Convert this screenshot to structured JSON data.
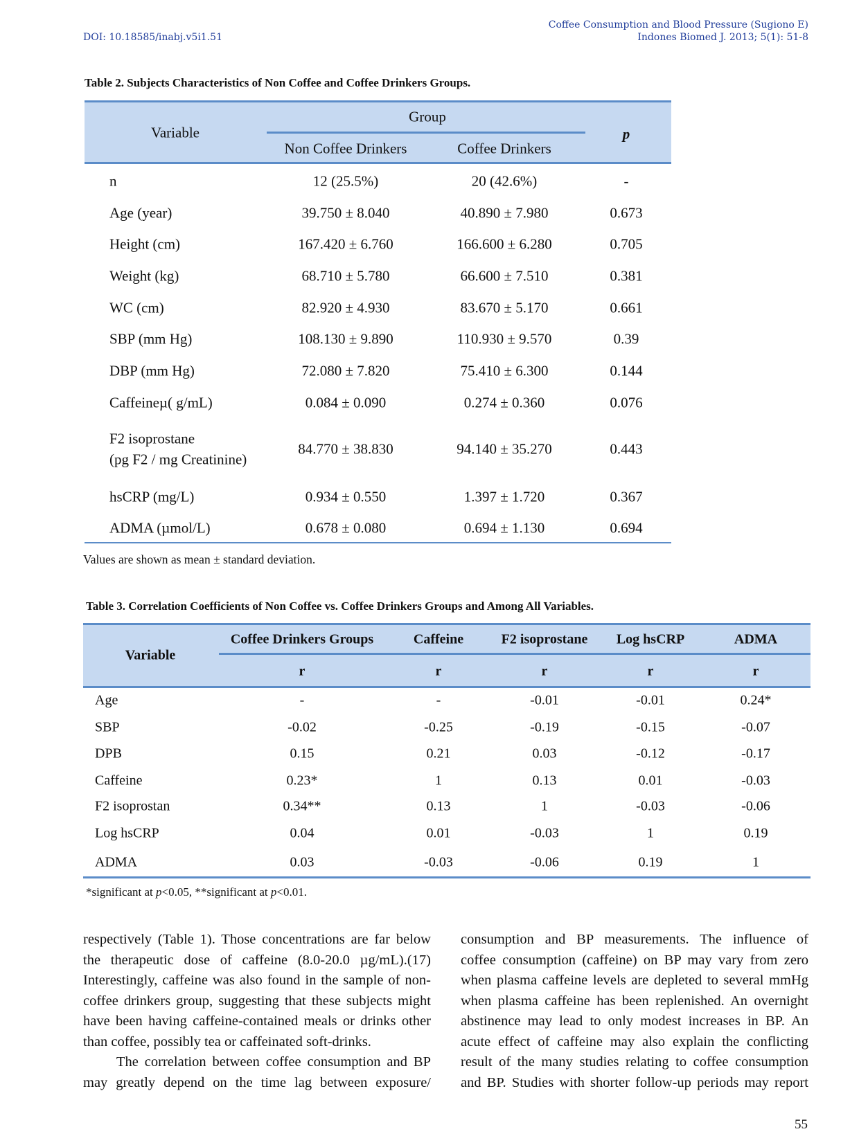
{
  "header": {
    "doi": "DOI: 10.18585/inabj.v5i1.51",
    "running_title": "Coffee Consumption and Blood Pressure (Sugiono E)",
    "citation": "Indones Biomed J. 2013; 5(1): 51-8",
    "color": "#1f3c9a"
  },
  "table2": {
    "title": "Table 2. Subjects Characteristics of Non Coffee and Coffee Drinkers Groups.",
    "col_variable": "Variable",
    "col_group": "Group",
    "col_non": "Non Coffee Drinkers",
    "col_coffee": "Coffee Drinkers",
    "col_p": "p",
    "rows": [
      {
        "var": [
          "n"
        ],
        "non": "12 (25.5%)",
        "coffee": "20 (42.6%)",
        "p": "-"
      },
      {
        "var": [
          "Age (year)"
        ],
        "non": "39.750 ± 8.040",
        "coffee": "40.890 ± 7.980",
        "p": "0.673"
      },
      {
        "var": [
          "Height (cm)"
        ],
        "non": "167.420 ± 6.760",
        "coffee": "166.600 ± 6.280",
        "p": "0.705"
      },
      {
        "var": [
          "Weight (kg)"
        ],
        "non": "68.710 ± 5.780",
        "coffee": "66.600 ± 7.510",
        "p": "0.381"
      },
      {
        "var": [
          "WC (cm)"
        ],
        "non": "82.920 ± 4.930",
        "coffee": "83.670 ± 5.170",
        "p": "0.661"
      },
      {
        "var": [
          "SBP (mm Hg)"
        ],
        "non": "108.130 ± 9.890",
        "coffee": "110.930 ± 9.570",
        "p": "0.39"
      },
      {
        "var": [
          "DBP (mm Hg)"
        ],
        "non": "72.080 ± 7.820",
        "coffee": "75.410 ± 6.300",
        "p": "0.144"
      },
      {
        "var": [
          "Caffeineµ(  g/mL)"
        ],
        "non": "0.084 ± 0.090",
        "coffee": "0.274 ± 0.360",
        "p": "0.076"
      },
      {
        "var": [
          "F2 isoprostane",
          "(pg F2 / mg Creatinine)"
        ],
        "non": "84.770 ± 38.830",
        "coffee": "94.140 ± 35.270",
        "p": "0.443"
      },
      {
        "var": [
          "hsCRP (mg/L)"
        ],
        "non": "0.934 ± 0.550",
        "coffee": "1.397 ± 1.720",
        "p": "0.367"
      },
      {
        "var": [
          "ADMA (µmol/L)"
        ],
        "non": "0.678 ± 0.080",
        "coffee": "0.694 ± 1.130",
        "p": "0.694"
      }
    ],
    "note": "Values are shown as mean ± standard deviation."
  },
  "table3": {
    "title": "Table 3. Correlation Coefficients of Non Coffee vs. Coffee Drinkers Groups and Among All Variables.",
    "col_variable": "Variable",
    "columns": [
      "Coffee Drinkers Groups",
      "Caffeine",
      "F2 isoprostane",
      "Log hsCRP",
      "ADMA"
    ],
    "sub": "r",
    "rows": [
      {
        "var": "Age",
        "vals": [
          "-",
          "-",
          "-0.01",
          "-0.01",
          "0.24*"
        ]
      },
      {
        "var": "SBP",
        "vals": [
          "-0.02",
          "-0.25",
          "-0.19",
          "-0.15",
          "-0.07"
        ]
      },
      {
        "var": "DPB",
        "vals": [
          "0.15",
          "0.21",
          "0.03",
          "-0.12",
          "-0.17"
        ]
      },
      {
        "var": "Caffeine",
        "vals": [
          "0.23*",
          "1",
          "0.13",
          "0.01",
          "-0.03"
        ]
      },
      {
        "var": "F2 isoprostan",
        "vals": [
          "0.34**",
          "0.13",
          "1",
          "-0.03",
          "-0.06"
        ]
      },
      {
        "var": "Log hsCRP",
        "vals": [
          "0.04",
          "0.01",
          "-0.03",
          "1",
          "0.19"
        ]
      },
      {
        "var": "ADMA",
        "vals": [
          "0.03",
          "-0.03",
          "-0.06",
          "0.19",
          "1"
        ]
      }
    ],
    "note_a": "*significant at ",
    "note_p1": "p",
    "note_b": "<0.05, **significant at ",
    "note_p2": "p",
    "note_c": "<0.01."
  },
  "body": {
    "left": [
      "respectively (Table 1). Those concentrations are far below",
      "the therapeutic dose of caffeine (8.0-20.0 µg/mL).(17)",
      "Interestingly, caffeine was also found in the sample of non-",
      "coffee drinkers group, suggesting that these subjects might",
      "have been having caffeine-contained meals or drinks other",
      "than coffee, possibly tea or caffeinated soft-drinks.",
      "The correlation between coffee consumption and BP",
      "may greatly depend on the time lag between exposure/"
    ],
    "right": [
      "consumption and BP measurements. The influence of",
      "coffee consumption (caffeine) on BP may vary from zero",
      "when plasma caffeine levels are depleted to several mmHg",
      "when plasma caffeine has been replenished. An overnight",
      "abstinence may lead to only modest increases in BP. An",
      "acute effect of caffeine may also explain the conflicting",
      "result of the many studies relating to coffee consumption",
      "and BP. Studies with shorter follow-up periods may report"
    ]
  },
  "page_number": "55"
}
